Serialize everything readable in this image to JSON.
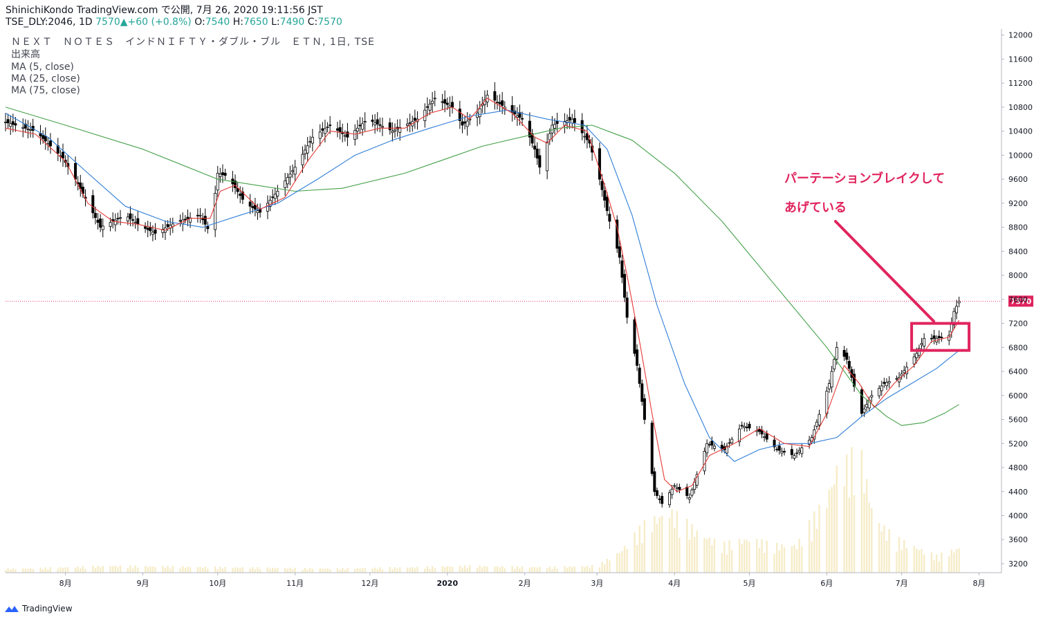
{
  "header": {
    "publish_line": "ShinichiKondo TradingView.com で公開, 7月 26, 2020 19:11:56 JST",
    "symbol": "TSE_DLY:2046, 1D",
    "last": "7570",
    "up_arrow": "▲",
    "change": "+60 (+0.8%)",
    "o_label": "O:",
    "o_value": "7540",
    "h_label": "H:",
    "h_value": "7650",
    "l_label": "L:",
    "l_value": "7490",
    "c_label": "C:",
    "c_value": "7570"
  },
  "legend": {
    "title": "ＮＥＸＴ　ＮＯＴＥＳ　インドＮＩＦＴＹ・ダブル・ブル　ＥＴＮ, 1日, TSE",
    "volume": "出来高",
    "ma5": "MA (5, close)",
    "ma25": "MA (25, close)",
    "ma75": "MA (75, close)"
  },
  "annotation": {
    "line1": "パーテーションブレイクして",
    "line2": "あげている",
    "color": "#e0245e"
  },
  "branding": {
    "name": "TradingView"
  },
  "colors": {
    "up": "#26a69a",
    "candle": "#000000",
    "ma5": "#e53935",
    "ma25": "#2f7ed8",
    "ma75": "#43a047",
    "volume": "#f6ecc8",
    "price_line": "#e0245e"
  },
  "chart_data": {
    "type": "candlestick",
    "price_axis": [
      3200,
      3600,
      4000,
      4400,
      4800,
      5200,
      5600,
      6000,
      6400,
      6800,
      7200,
      7600,
      8000,
      8400,
      8800,
      9200,
      9600,
      10000,
      10400,
      10800,
      11200,
      11600,
      12000
    ],
    "price_axis_labels": [
      "3200",
      "3600",
      "4000",
      "4400",
      "4800",
      "5200",
      "5600",
      "6000",
      "6400",
      "6800",
      "7200",
      "7600",
      "8000",
      "8400",
      "8800",
      "9200",
      "9600",
      "10000",
      "10400",
      "10800",
      "11200",
      "11600",
      "12000"
    ],
    "ylim": [
      3050,
      12100
    ],
    "current_price": 7570,
    "current_price_label": "7570",
    "xlim": [
      "2019-07-08",
      "2020-08-10"
    ],
    "x_ticks": [
      {
        "date": "2019-08-01",
        "label": "8月"
      },
      {
        "date": "2019-09-01",
        "label": "9月"
      },
      {
        "date": "2019-10-01",
        "label": "10月"
      },
      {
        "date": "2019-11-01",
        "label": "11月"
      },
      {
        "date": "2019-12-01",
        "label": "12月"
      },
      {
        "date": "2020-01-01",
        "label": "2020"
      },
      {
        "date": "2020-02-01",
        "label": "2月"
      },
      {
        "date": "2020-03-01",
        "label": "3月"
      },
      {
        "date": "2020-04-01",
        "label": "4月"
      },
      {
        "date": "2020-05-01",
        "label": "5月"
      },
      {
        "date": "2020-06-01",
        "label": "6月"
      },
      {
        "date": "2020-07-01",
        "label": "7月"
      },
      {
        "date": "2020-08-01",
        "label": "8月"
      }
    ],
    "close_path": [
      [
        "2019-07-08",
        10550
      ],
      [
        "2019-07-20",
        10400
      ],
      [
        "2019-07-31",
        9950
      ],
      [
        "2019-08-05",
        9600
      ],
      [
        "2019-08-15",
        8800
      ],
      [
        "2019-08-25",
        9000
      ],
      [
        "2019-09-01",
        8800
      ],
      [
        "2019-09-06",
        8700
      ],
      [
        "2019-09-15",
        8900
      ],
      [
        "2019-09-24",
        9000
      ],
      [
        "2019-09-28",
        8700
      ],
      [
        "2019-10-01",
        9700
      ],
      [
        "2019-10-05",
        9650
      ],
      [
        "2019-10-12",
        9200
      ],
      [
        "2019-10-18",
        9050
      ],
      [
        "2019-10-25",
        9400
      ],
      [
        "2019-11-01",
        9800
      ],
      [
        "2019-11-08",
        10300
      ],
      [
        "2019-11-15",
        10500
      ],
      [
        "2019-11-22",
        10300
      ],
      [
        "2019-11-30",
        10600
      ],
      [
        "2019-12-10",
        10400
      ],
      [
        "2019-12-20",
        10600
      ],
      [
        "2019-12-27",
        10950
      ],
      [
        "2020-01-03",
        10800
      ],
      [
        "2020-01-07",
        10500
      ],
      [
        "2020-01-13",
        10700
      ],
      [
        "2020-01-17",
        11000
      ],
      [
        "2020-01-24",
        10800
      ],
      [
        "2020-01-31",
        10600
      ],
      [
        "2020-02-05",
        10100
      ],
      [
        "2020-02-07",
        9800
      ],
      [
        "2020-02-12",
        10500
      ],
      [
        "2020-02-20",
        10600
      ],
      [
        "2020-02-27",
        10200
      ],
      [
        "2020-03-02",
        9600
      ],
      [
        "2020-03-06",
        8900
      ],
      [
        "2020-03-10",
        8300
      ],
      [
        "2020-03-13",
        7300
      ],
      [
        "2020-03-17",
        6500
      ],
      [
        "2020-03-20",
        5600
      ],
      [
        "2020-03-24",
        4400
      ],
      [
        "2020-03-27",
        4200
      ],
      [
        "2020-04-01",
        4500
      ],
      [
        "2020-04-07",
        4300
      ],
      [
        "2020-04-14",
        5200
      ],
      [
        "2020-04-21",
        5100
      ],
      [
        "2020-04-28",
        5500
      ],
      [
        "2020-05-05",
        5400
      ],
      [
        "2020-05-12",
        5100
      ],
      [
        "2020-05-19",
        5000
      ],
      [
        "2020-05-26",
        5300
      ],
      [
        "2020-06-02",
        6200
      ],
      [
        "2020-06-05",
        6800
      ],
      [
        "2020-06-09",
        6600
      ],
      [
        "2020-06-15",
        5700
      ],
      [
        "2020-06-19",
        6000
      ],
      [
        "2020-06-24",
        6200
      ],
      [
        "2020-06-30",
        6300
      ],
      [
        "2020-07-07",
        6700
      ],
      [
        "2020-07-10",
        6950
      ],
      [
        "2020-07-15",
        6950
      ],
      [
        "2020-07-20",
        7000
      ],
      [
        "2020-07-22",
        7400
      ],
      [
        "2020-07-24",
        7570
      ]
    ],
    "ma5_path": [
      [
        "2019-07-08",
        10450
      ],
      [
        "2019-07-20",
        10350
      ],
      [
        "2019-08-01",
        9900
      ],
      [
        "2019-08-10",
        9200
      ],
      [
        "2019-08-20",
        8900
      ],
      [
        "2019-08-30",
        8850
      ],
      [
        "2019-09-10",
        8750
      ],
      [
        "2019-09-20",
        8950
      ],
      [
        "2019-09-28",
        8950
      ],
      [
        "2019-10-02",
        9400
      ],
      [
        "2019-10-08",
        9500
      ],
      [
        "2019-10-18",
        9100
      ],
      [
        "2019-10-28",
        9300
      ],
      [
        "2019-11-06",
        9900
      ],
      [
        "2019-11-15",
        10400
      ],
      [
        "2019-11-25",
        10350
      ],
      [
        "2019-12-05",
        10450
      ],
      [
        "2019-12-15",
        10450
      ],
      [
        "2019-12-25",
        10700
      ],
      [
        "2020-01-03",
        10800
      ],
      [
        "2020-01-10",
        10600
      ],
      [
        "2020-01-17",
        10950
      ],
      [
        "2020-01-27",
        10700
      ],
      [
        "2020-02-05",
        10300
      ],
      [
        "2020-02-10",
        10200
      ],
      [
        "2020-02-17",
        10500
      ],
      [
        "2020-02-26",
        10400
      ],
      [
        "2020-03-04",
        9500
      ],
      [
        "2020-03-09",
        8800
      ],
      [
        "2020-03-13",
        8000
      ],
      [
        "2020-03-18",
        6900
      ],
      [
        "2020-03-23",
        5700
      ],
      [
        "2020-03-28",
        4600
      ],
      [
        "2020-04-02",
        4400
      ],
      [
        "2020-04-08",
        4500
      ],
      [
        "2020-04-15",
        5000
      ],
      [
        "2020-04-25",
        5200
      ],
      [
        "2020-05-05",
        5450
      ],
      [
        "2020-05-15",
        5200
      ],
      [
        "2020-05-25",
        5150
      ],
      [
        "2020-06-01",
        5700
      ],
      [
        "2020-06-08",
        6500
      ],
      [
        "2020-06-14",
        6200
      ],
      [
        "2020-06-20",
        5800
      ],
      [
        "2020-06-28",
        6200
      ],
      [
        "2020-07-06",
        6500
      ],
      [
        "2020-07-13",
        6900
      ],
      [
        "2020-07-20",
        6970
      ],
      [
        "2020-07-24",
        7250
      ]
    ],
    "ma25_path": [
      [
        "2019-07-08",
        10700
      ],
      [
        "2019-07-25",
        10300
      ],
      [
        "2019-08-10",
        9700
      ],
      [
        "2019-08-25",
        9150
      ],
      [
        "2019-09-10",
        8900
      ],
      [
        "2019-09-25",
        8800
      ],
      [
        "2019-10-10",
        9000
      ],
      [
        "2019-10-25",
        9200
      ],
      [
        "2019-11-10",
        9600
      ],
      [
        "2019-11-25",
        10000
      ],
      [
        "2019-12-10",
        10250
      ],
      [
        "2019-12-25",
        10450
      ],
      [
        "2020-01-10",
        10650
      ],
      [
        "2020-01-25",
        10750
      ],
      [
        "2020-02-10",
        10600
      ],
      [
        "2020-02-25",
        10500
      ],
      [
        "2020-03-05",
        10100
      ],
      [
        "2020-03-15",
        9000
      ],
      [
        "2020-03-25",
        7500
      ],
      [
        "2020-04-05",
        6200
      ],
      [
        "2020-04-15",
        5300
      ],
      [
        "2020-04-25",
        4900
      ],
      [
        "2020-05-05",
        5100
      ],
      [
        "2020-05-15",
        5200
      ],
      [
        "2020-05-25",
        5200
      ],
      [
        "2020-06-05",
        5300
      ],
      [
        "2020-06-15",
        5650
      ],
      [
        "2020-06-25",
        5950
      ],
      [
        "2020-07-05",
        6200
      ],
      [
        "2020-07-15",
        6450
      ],
      [
        "2020-07-24",
        6750
      ]
    ],
    "ma75_path": [
      [
        "2019-07-08",
        10800
      ],
      [
        "2019-08-01",
        10500
      ],
      [
        "2019-09-01",
        10100
      ],
      [
        "2019-10-01",
        9600
      ],
      [
        "2019-11-01",
        9400
      ],
      [
        "2019-11-20",
        9450
      ],
      [
        "2019-12-15",
        9700
      ],
      [
        "2020-01-15",
        10150
      ],
      [
        "2020-02-15",
        10450
      ],
      [
        "2020-02-28",
        10500
      ],
      [
        "2020-03-15",
        10250
      ],
      [
        "2020-04-01",
        9700
      ],
      [
        "2020-04-20",
        8900
      ],
      [
        "2020-05-10",
        7900
      ],
      [
        "2020-06-01",
        6800
      ],
      [
        "2020-06-15",
        6000
      ],
      [
        "2020-06-25",
        5650
      ],
      [
        "2020-07-01",
        5500
      ],
      [
        "2020-07-10",
        5550
      ],
      [
        "2020-07-18",
        5700
      ],
      [
        "2020-07-24",
        5850
      ]
    ],
    "volume_series": [
      [
        "2019-07-15",
        0.03
      ],
      [
        "2019-08-20",
        0.05
      ],
      [
        "2019-10-01",
        0.04
      ],
      [
        "2019-11-15",
        0.03
      ],
      [
        "2019-12-20",
        0.04
      ],
      [
        "2020-01-10",
        0.05
      ],
      [
        "2020-02-10",
        0.04
      ],
      [
        "2020-03-01",
        0.05
      ],
      [
        "2020-03-10",
        0.15
      ],
      [
        "2020-03-20",
        0.35
      ],
      [
        "2020-03-30",
        0.45
      ],
      [
        "2020-04-10",
        0.3
      ],
      [
        "2020-04-20",
        0.2
      ],
      [
        "2020-05-01",
        0.25
      ],
      [
        "2020-05-10",
        0.2
      ],
      [
        "2020-05-20",
        0.2
      ],
      [
        "2020-06-01",
        0.55
      ],
      [
        "2020-06-05",
        0.75
      ],
      [
        "2020-06-10",
        0.8
      ],
      [
        "2020-06-14",
        0.9
      ],
      [
        "2020-06-20",
        0.4
      ],
      [
        "2020-06-28",
        0.25
      ],
      [
        "2020-07-05",
        0.2
      ],
      [
        "2020-07-15",
        0.12
      ],
      [
        "2020-07-24",
        0.18
      ]
    ],
    "partition_box": {
      "start": "2020-07-05",
      "end": "2020-07-28",
      "low": 6750,
      "high": 7200
    }
  }
}
